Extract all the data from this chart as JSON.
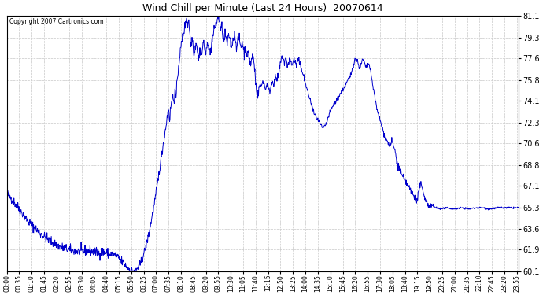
{
  "title": "Wind Chill per Minute (Last 24 Hours)  20070614",
  "copyright": "Copyright 2007 Cartronics.com",
  "line_color": "#0000cc",
  "background_color": "#ffffff",
  "grid_color": "#c8c8c8",
  "y_ticks": [
    60.1,
    61.9,
    63.6,
    65.3,
    67.1,
    68.8,
    70.6,
    72.3,
    74.1,
    75.8,
    77.6,
    79.3,
    81.1
  ],
  "y_min": 60.1,
  "y_max": 81.1,
  "x_labels": [
    "00:00",
    "00:35",
    "01:10",
    "01:45",
    "02:20",
    "02:55",
    "03:30",
    "04:05",
    "04:40",
    "05:15",
    "05:50",
    "06:25",
    "07:00",
    "07:35",
    "08:10",
    "08:45",
    "09:20",
    "09:55",
    "10:30",
    "11:05",
    "11:40",
    "12:15",
    "12:50",
    "13:25",
    "14:00",
    "14:35",
    "15:10",
    "15:45",
    "16:20",
    "16:55",
    "17:30",
    "18:05",
    "18:40",
    "19:15",
    "19:50",
    "20:25",
    "21:00",
    "21:35",
    "22:10",
    "22:45",
    "23:20",
    "23:55"
  ],
  "control_points": [
    [
      0,
      66.5
    ],
    [
      20,
      65.8
    ],
    [
      40,
      65.0
    ],
    [
      60,
      64.2
    ],
    [
      90,
      63.3
    ],
    [
      120,
      62.6
    ],
    [
      150,
      62.1
    ],
    [
      180,
      61.8
    ],
    [
      210,
      61.7
    ],
    [
      230,
      61.8
    ],
    [
      240,
      61.7
    ],
    [
      260,
      61.6
    ],
    [
      270,
      61.7
    ],
    [
      280,
      61.6
    ],
    [
      290,
      61.5
    ],
    [
      300,
      61.5
    ],
    [
      310,
      61.3
    ],
    [
      320,
      61.0
    ],
    [
      330,
      60.7
    ],
    [
      340,
      60.4
    ],
    [
      348,
      60.2
    ],
    [
      353,
      60.1
    ],
    [
      358,
      60.15
    ],
    [
      363,
      60.2
    ],
    [
      370,
      60.4
    ],
    [
      380,
      61.0
    ],
    [
      390,
      62.0
    ],
    [
      400,
      63.2
    ],
    [
      410,
      64.8
    ],
    [
      420,
      66.5
    ],
    [
      430,
      68.5
    ],
    [
      440,
      70.5
    ],
    [
      450,
      72.5
    ],
    [
      455,
      73.5
    ],
    [
      458,
      72.5
    ],
    [
      462,
      73.8
    ],
    [
      467,
      74.5
    ],
    [
      470,
      74.1
    ],
    [
      473,
      74.8
    ],
    [
      476,
      74.2
    ],
    [
      480,
      76.0
    ],
    [
      485,
      77.5
    ],
    [
      490,
      78.5
    ],
    [
      495,
      79.5
    ],
    [
      500,
      80.0
    ],
    [
      503,
      80.5
    ],
    [
      506,
      81.0
    ],
    [
      509,
      80.3
    ],
    [
      512,
      80.8
    ],
    [
      515,
      79.5
    ],
    [
      518,
      78.5
    ],
    [
      521,
      79.2
    ],
    [
      524,
      78.8
    ],
    [
      527,
      77.8
    ],
    [
      530,
      78.5
    ],
    [
      533,
      79.0
    ],
    [
      536,
      78.3
    ],
    [
      539,
      77.5
    ],
    [
      542,
      78.0
    ],
    [
      545,
      78.5
    ],
    [
      548,
      77.8
    ],
    [
      551,
      78.5
    ],
    [
      554,
      79.0
    ],
    [
      557,
      78.3
    ],
    [
      560,
      77.8
    ],
    [
      563,
      78.5
    ],
    [
      566,
      79.0
    ],
    [
      569,
      78.5
    ],
    [
      572,
      77.8
    ],
    [
      575,
      78.5
    ],
    [
      578,
      79.2
    ],
    [
      581,
      79.5
    ],
    [
      584,
      80.0
    ],
    [
      587,
      80.3
    ],
    [
      590,
      80.5
    ],
    [
      593,
      80.8
    ],
    [
      596,
      81.0
    ],
    [
      599,
      80.5
    ],
    [
      602,
      79.8
    ],
    [
      605,
      80.2
    ],
    [
      608,
      79.5
    ],
    [
      611,
      79.0
    ],
    [
      614,
      79.5
    ],
    [
      617,
      79.2
    ],
    [
      620,
      78.8
    ],
    [
      623,
      79.2
    ],
    [
      626,
      79.5
    ],
    [
      629,
      79.0
    ],
    [
      632,
      78.5
    ],
    [
      635,
      79.0
    ],
    [
      638,
      79.3
    ],
    [
      641,
      79.5
    ],
    [
      644,
      79.0
    ],
    [
      647,
      78.5
    ],
    [
      650,
      79.0
    ],
    [
      653,
      79.3
    ],
    [
      656,
      78.8
    ],
    [
      659,
      78.5
    ],
    [
      662,
      79.0
    ],
    [
      665,
      78.5
    ],
    [
      668,
      78.0
    ],
    [
      671,
      78.5
    ],
    [
      674,
      78.2
    ],
    [
      677,
      77.8
    ],
    [
      680,
      78.0
    ],
    [
      683,
      77.5
    ],
    [
      686,
      77.0
    ],
    [
      689,
      77.5
    ],
    [
      692,
      77.8
    ],
    [
      695,
      77.3
    ],
    [
      698,
      76.5
    ],
    [
      700,
      75.5
    ],
    [
      703,
      75.0
    ],
    [
      706,
      74.5
    ],
    [
      709,
      75.0
    ],
    [
      712,
      75.5
    ],
    [
      715,
      75.2
    ],
    [
      718,
      75.5
    ],
    [
      721,
      75.8
    ],
    [
      724,
      75.5
    ],
    [
      727,
      75.0
    ],
    [
      730,
      75.3
    ],
    [
      733,
      75.5
    ],
    [
      736,
      75.0
    ],
    [
      739,
      74.8
    ],
    [
      742,
      75.2
    ],
    [
      745,
      75.5
    ],
    [
      748,
      75.8
    ],
    [
      751,
      75.5
    ],
    [
      754,
      75.8
    ],
    [
      757,
      76.0
    ],
    [
      760,
      75.8
    ],
    [
      763,
      76.0
    ],
    [
      766,
      76.5
    ],
    [
      769,
      77.0
    ],
    [
      772,
      77.5
    ],
    [
      775,
      77.8
    ],
    [
      778,
      77.5
    ],
    [
      781,
      77.2
    ],
    [
      784,
      77.5
    ],
    [
      787,
      77.3
    ],
    [
      790,
      77.0
    ],
    [
      793,
      77.3
    ],
    [
      796,
      77.5
    ],
    [
      799,
      77.3
    ],
    [
      802,
      77.0
    ],
    [
      805,
      77.3
    ],
    [
      808,
      77.5
    ],
    [
      811,
      77.3
    ],
    [
      814,
      77.0
    ],
    [
      817,
      77.2
    ],
    [
      820,
      77.5
    ],
    [
      823,
      77.2
    ],
    [
      826,
      77.0
    ],
    [
      829,
      76.8
    ],
    [
      832,
      76.5
    ],
    [
      836,
      76.0
    ],
    [
      840,
      75.5
    ],
    [
      845,
      75.0
    ],
    [
      850,
      74.5
    ],
    [
      855,
      74.0
    ],
    [
      860,
      73.5
    ],
    [
      865,
      73.0
    ],
    [
      870,
      72.8
    ],
    [
      875,
      72.5
    ],
    [
      880,
      72.3
    ],
    [
      885,
      72.0
    ],
    [
      890,
      71.8
    ],
    [
      895,
      72.0
    ],
    [
      900,
      72.3
    ],
    [
      905,
      72.8
    ],
    [
      910,
      73.2
    ],
    [
      915,
      73.5
    ],
    [
      920,
      73.8
    ],
    [
      925,
      74.0
    ],
    [
      930,
      74.2
    ],
    [
      935,
      74.5
    ],
    [
      940,
      74.8
    ],
    [
      945,
      75.0
    ],
    [
      950,
      75.2
    ],
    [
      955,
      75.5
    ],
    [
      960,
      75.8
    ],
    [
      965,
      76.0
    ],
    [
      970,
      76.5
    ],
    [
      975,
      77.0
    ],
    [
      978,
      77.5
    ],
    [
      981,
      77.5
    ],
    [
      984,
      77.5
    ],
    [
      987,
      77.3
    ],
    [
      990,
      77.0
    ],
    [
      993,
      76.8
    ],
    [
      996,
      77.0
    ],
    [
      999,
      77.3
    ],
    [
      1002,
      77.5
    ],
    [
      1005,
      77.3
    ],
    [
      1008,
      77.0
    ],
    [
      1011,
      76.8
    ],
    [
      1014,
      77.0
    ],
    [
      1017,
      77.2
    ],
    [
      1020,
      77.0
    ],
    [
      1023,
      76.5
    ],
    [
      1026,
      76.0
    ],
    [
      1029,
      75.5
    ],
    [
      1032,
      75.0
    ],
    [
      1035,
      74.5
    ],
    [
      1038,
      74.0
    ],
    [
      1040,
      73.5
    ],
    [
      1045,
      73.0
    ],
    [
      1050,
      72.5
    ],
    [
      1055,
      72.0
    ],
    [
      1060,
      71.5
    ],
    [
      1065,
      71.0
    ],
    [
      1070,
      70.8
    ],
    [
      1075,
      70.5
    ],
    [
      1080,
      70.5
    ],
    [
      1083,
      70.8
    ],
    [
      1086,
      70.5
    ],
    [
      1089,
      70.3
    ],
    [
      1092,
      70.0
    ],
    [
      1095,
      69.5
    ],
    [
      1098,
      69.0
    ],
    [
      1100,
      68.8
    ],
    [
      1105,
      68.5
    ],
    [
      1110,
      68.0
    ],
    [
      1115,
      67.8
    ],
    [
      1120,
      67.5
    ],
    [
      1125,
      67.3
    ],
    [
      1130,
      67.0
    ],
    [
      1135,
      66.8
    ],
    [
      1140,
      66.5
    ],
    [
      1145,
      66.3
    ],
    [
      1150,
      66.0
    ],
    [
      1155,
      65.8
    ],
    [
      1158,
      66.5
    ],
    [
      1160,
      67.0
    ],
    [
      1163,
      67.2
    ],
    [
      1166,
      67.1
    ],
    [
      1169,
      66.8
    ],
    [
      1172,
      66.5
    ],
    [
      1175,
      66.3
    ],
    [
      1178,
      66.0
    ],
    [
      1181,
      65.8
    ],
    [
      1184,
      65.6
    ],
    [
      1187,
      65.4
    ],
    [
      1190,
      65.5
    ],
    [
      1193,
      65.6
    ],
    [
      1196,
      65.5
    ],
    [
      1200,
      65.4
    ],
    [
      1210,
      65.3
    ],
    [
      1220,
      65.2
    ],
    [
      1240,
      65.3
    ],
    [
      1260,
      65.2
    ],
    [
      1280,
      65.3
    ],
    [
      1300,
      65.2
    ],
    [
      1320,
      65.3
    ],
    [
      1340,
      65.3
    ],
    [
      1360,
      65.2
    ],
    [
      1380,
      65.3
    ],
    [
      1400,
      65.3
    ],
    [
      1420,
      65.3
    ],
    [
      1439,
      65.3
    ]
  ]
}
